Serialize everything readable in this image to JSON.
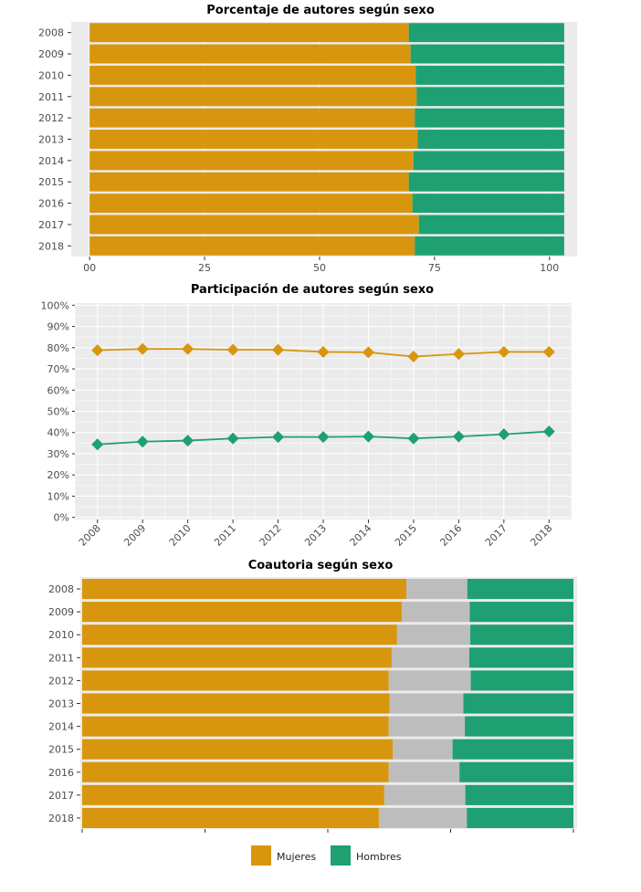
{
  "colors": {
    "mujeres": "#D8960E",
    "hombres": "#1EA072",
    "otro": "#BDBDBD",
    "panel": "#EBEBEB",
    "grid": "#FFFFFF"
  },
  "legend": {
    "items": [
      {
        "label": "Mujeres",
        "color": "#D8960E"
      },
      {
        "label": "Hombres",
        "color": "#1EA072"
      }
    ]
  },
  "chart_data": [
    {
      "type": "bar",
      "orientation": "horizontal",
      "stacked": true,
      "title": "Porcentaje de autores según sexo",
      "categories": [
        "2008",
        "2009",
        "2010",
        "2011",
        "2012",
        "2013",
        "2014",
        "2015",
        "2016",
        "2017",
        "2018"
      ],
      "xlim": [
        -4,
        106
      ],
      "xticks": [
        0,
        25,
        50,
        75,
        100
      ],
      "xtick_labels": [
        "00",
        "25",
        "50",
        "75",
        "100"
      ],
      "series": [
        {
          "name": "Mujeres",
          "values": [
            69.4,
            69.8,
            70.9,
            71.1,
            70.7,
            71.3,
            70.4,
            69.4,
            70.2,
            71.6,
            70.7
          ]
        },
        {
          "name": "Hombres",
          "values": [
            33.8,
            33.4,
            32.3,
            32.1,
            32.5,
            31.9,
            32.8,
            33.8,
            33.0,
            31.6,
            32.5
          ]
        }
      ]
    },
    {
      "type": "line",
      "title": "Participación de autores según sexo",
      "x": [
        "2008",
        "2009",
        "2010",
        "2011",
        "2012",
        "2013",
        "2014",
        "2015",
        "2016",
        "2017",
        "2018"
      ],
      "ylim": [
        -1,
        101
      ],
      "yticks": [
        0,
        10,
        20,
        30,
        40,
        50,
        60,
        70,
        80,
        90,
        100
      ],
      "ytick_labels": [
        "0%",
        "10%",
        "20%",
        "30%",
        "40%",
        "50%",
        "60%",
        "70%",
        "80%",
        "90%",
        "100%"
      ],
      "series": [
        {
          "name": "Mujeres",
          "values": [
            78.8,
            79.4,
            79.4,
            79.0,
            79.0,
            78.0,
            77.8,
            75.8,
            77.0,
            78.0,
            78.0
          ]
        },
        {
          "name": "Hombres",
          "values": [
            34.4,
            35.7,
            36.2,
            37.2,
            37.9,
            37.9,
            38.1,
            37.2,
            38.1,
            39.2,
            40.5
          ]
        }
      ]
    },
    {
      "type": "bar",
      "orientation": "horizontal",
      "stacked": true,
      "title": "Coautoria según sexo",
      "categories": [
        "2008",
        "2009",
        "2010",
        "2011",
        "2012",
        "2013",
        "2014",
        "2015",
        "2016",
        "2017",
        "2018"
      ],
      "xlim": [
        0,
        100
      ],
      "series": [
        {
          "name": "Mujeres",
          "values": [
            66.0,
            65.1,
            64.1,
            63.0,
            62.4,
            62.6,
            62.4,
            63.2,
            62.4,
            61.5,
            60.4
          ]
        },
        {
          "name": "",
          "values": [
            12.4,
            13.8,
            14.9,
            15.8,
            16.7,
            15.0,
            15.5,
            12.2,
            14.4,
            16.5,
            17.9
          ]
        },
        {
          "name": "Hombres",
          "values": [
            21.6,
            21.1,
            21.0,
            21.2,
            20.9,
            22.4,
            22.1,
            24.6,
            23.2,
            22.0,
            21.7
          ]
        }
      ]
    }
  ]
}
